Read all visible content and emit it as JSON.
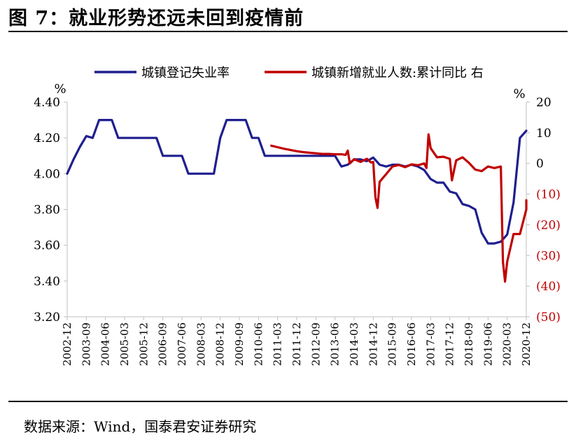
{
  "figure": {
    "title": "图 7：就业形势还远未回到疫情前",
    "source": "数据来源：Wind，国泰君安证券研究"
  },
  "colors": {
    "series_left": "#1f1f8f",
    "series_right": "#c00000",
    "axis": "#bfbfbf"
  },
  "chart_data": {
    "type": "line",
    "legend_position": "top",
    "grid": false,
    "x_ticks": [
      "2002-12",
      "2003-09",
      "2004-06",
      "2005-03",
      "2005-12",
      "2006-09",
      "2007-06",
      "2008-03",
      "2008-12",
      "2009-09",
      "2010-06",
      "2011-03",
      "2011-12",
      "2012-09",
      "2013-06",
      "2014-03",
      "2014-12",
      "2015-09",
      "2016-06",
      "2017-03",
      "2017-12",
      "2018-09",
      "2019-06",
      "2020-03",
      "2020-12"
    ],
    "x_range": [
      "2002-12",
      "2020-12"
    ],
    "left_axis": {
      "unit": "%",
      "range": [
        3.2,
        4.4
      ],
      "ticks": [
        "3.20",
        "3.40",
        "3.60",
        "3.80",
        "4.00",
        "4.20",
        "4.40"
      ]
    },
    "right_axis": {
      "unit": "%",
      "range": [
        -50,
        20
      ],
      "ticks": [
        "(50)",
        "(40)",
        "(30)",
        "(20)",
        "(10)",
        "0",
        "10",
        "20"
      ]
    },
    "series": [
      {
        "name": "城镇登记失业率",
        "axis": "left",
        "points": [
          [
            "2002-12",
            4.0
          ],
          [
            "2003-03",
            4.08
          ],
          [
            "2003-06",
            4.15
          ],
          [
            "2003-09",
            4.21
          ],
          [
            "2003-12",
            4.2
          ],
          [
            "2004-03",
            4.3
          ],
          [
            "2004-06",
            4.3
          ],
          [
            "2004-09",
            4.3
          ],
          [
            "2004-12",
            4.2
          ],
          [
            "2005-03",
            4.2
          ],
          [
            "2005-06",
            4.2
          ],
          [
            "2005-09",
            4.2
          ],
          [
            "2005-12",
            4.2
          ],
          [
            "2006-03",
            4.2
          ],
          [
            "2006-06",
            4.2
          ],
          [
            "2006-09",
            4.1
          ],
          [
            "2006-12",
            4.1
          ],
          [
            "2007-03",
            4.1
          ],
          [
            "2007-06",
            4.1
          ],
          [
            "2007-09",
            4.0
          ],
          [
            "2007-12",
            4.0
          ],
          [
            "2008-03",
            4.0
          ],
          [
            "2008-06",
            4.0
          ],
          [
            "2008-09",
            4.0
          ],
          [
            "2008-12",
            4.2
          ],
          [
            "2009-03",
            4.3
          ],
          [
            "2009-06",
            4.3
          ],
          [
            "2009-09",
            4.3
          ],
          [
            "2009-12",
            4.3
          ],
          [
            "2010-03",
            4.2
          ],
          [
            "2010-06",
            4.2
          ],
          [
            "2010-09",
            4.1
          ],
          [
            "2010-12",
            4.1
          ],
          [
            "2011-03",
            4.1
          ],
          [
            "2011-06",
            4.1
          ],
          [
            "2011-09",
            4.1
          ],
          [
            "2011-12",
            4.1
          ],
          [
            "2012-03",
            4.1
          ],
          [
            "2012-06",
            4.1
          ],
          [
            "2012-09",
            4.1
          ],
          [
            "2012-12",
            4.1
          ],
          [
            "2013-03",
            4.1
          ],
          [
            "2013-06",
            4.1
          ],
          [
            "2013-09",
            4.04
          ],
          [
            "2013-12",
            4.05
          ],
          [
            "2014-03",
            4.08
          ],
          [
            "2014-06",
            4.08
          ],
          [
            "2014-09",
            4.07
          ],
          [
            "2014-12",
            4.09
          ],
          [
            "2015-03",
            4.05
          ],
          [
            "2015-06",
            4.04
          ],
          [
            "2015-09",
            4.05
          ],
          [
            "2015-12",
            4.05
          ],
          [
            "2016-03",
            4.04
          ],
          [
            "2016-06",
            4.05
          ],
          [
            "2016-09",
            4.04
          ],
          [
            "2016-12",
            4.02
          ],
          [
            "2017-03",
            3.97
          ],
          [
            "2017-06",
            3.95
          ],
          [
            "2017-09",
            3.95
          ],
          [
            "2017-12",
            3.9
          ],
          [
            "2018-03",
            3.89
          ],
          [
            "2018-06",
            3.83
          ],
          [
            "2018-09",
            3.82
          ],
          [
            "2018-12",
            3.8
          ],
          [
            "2019-03",
            3.67
          ],
          [
            "2019-06",
            3.61
          ],
          [
            "2019-09",
            3.61
          ],
          [
            "2019-12",
            3.62
          ],
          [
            "2020-03",
            3.66
          ],
          [
            "2020-06",
            3.84
          ],
          [
            "2020-09",
            4.2
          ],
          [
            "2020-12",
            4.24
          ]
        ]
      },
      {
        "name": "城镇新增就业人数:累计同比 右",
        "axis": "right",
        "points": [
          [
            "2010-12",
            5.8
          ],
          [
            "2011-03",
            5.3
          ],
          [
            "2011-06",
            4.8
          ],
          [
            "2011-09",
            4.4
          ],
          [
            "2011-12",
            4.0
          ],
          [
            "2012-03",
            3.7
          ],
          [
            "2012-06",
            3.5
          ],
          [
            "2012-09",
            3.3
          ],
          [
            "2012-12",
            3.1
          ],
          [
            "2013-03",
            3.1
          ],
          [
            "2013-06",
            3.0
          ],
          [
            "2013-09",
            3.0
          ],
          [
            "2013-11",
            2.8
          ],
          [
            "2013-12",
            4.2
          ],
          [
            "2014-01",
            0.0
          ],
          [
            "2014-03",
            1.4
          ],
          [
            "2014-06",
            0.5
          ],
          [
            "2014-09",
            1.5
          ],
          [
            "2014-11",
            0.3
          ],
          [
            "2014-12",
            0.5
          ],
          [
            "2015-01",
            -11.0
          ],
          [
            "2015-02",
            -14.5
          ],
          [
            "2015-03",
            -6.0
          ],
          [
            "2015-06",
            -3.5
          ],
          [
            "2015-09",
            -1.0
          ],
          [
            "2015-12",
            -0.5
          ],
          [
            "2016-03",
            -1.2
          ],
          [
            "2016-06",
            -0.3
          ],
          [
            "2016-09",
            -0.6
          ],
          [
            "2016-12",
            0.0
          ],
          [
            "2017-01",
            -1.5
          ],
          [
            "2017-02",
            9.5
          ],
          [
            "2017-03",
            5.0
          ],
          [
            "2017-06",
            2.0
          ],
          [
            "2017-09",
            2.2
          ],
          [
            "2017-12",
            1.5
          ],
          [
            "2018-01",
            -5.5
          ],
          [
            "2018-03",
            1.0
          ],
          [
            "2018-06",
            2.0
          ],
          [
            "2018-09",
            0.2
          ],
          [
            "2018-12",
            -2.0
          ],
          [
            "2019-03",
            -2.5
          ],
          [
            "2019-06",
            -1.0
          ],
          [
            "2019-09",
            -1.5
          ],
          [
            "2019-12",
            -1.0
          ],
          [
            "2020-01",
            -32.0
          ],
          [
            "2020-02",
            -38.5
          ],
          [
            "2020-03",
            -32.0
          ],
          [
            "2020-06",
            -23.0
          ],
          [
            "2020-09",
            -23.0
          ],
          [
            "2020-12",
            -15.0
          ],
          [
            "2021-02",
            -12.0
          ]
        ]
      }
    ]
  }
}
